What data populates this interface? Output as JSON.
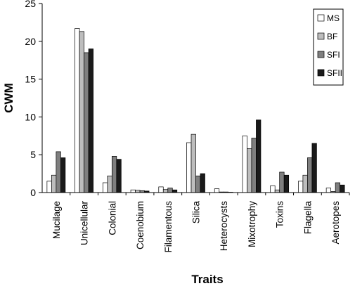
{
  "chart_data": {
    "type": "bar",
    "xlabel": "Traits",
    "ylabel": "CWM",
    "ylim": [
      0,
      25
    ],
    "yticks": [
      0,
      5,
      10,
      15,
      20,
      25
    ],
    "grid": false,
    "legend_position": "top-right",
    "categories": [
      "Mucilage",
      "Unicellular",
      "Colonial",
      "Coenobium",
      "Filamentous",
      "Silica",
      "Heterocysts",
      "Mixotrophy",
      "Toxins",
      "Flagella",
      "Aerotopes"
    ],
    "series": [
      {
        "name": "MS",
        "color": "#ffffff",
        "values": [
          1.5,
          21.7,
          1.3,
          0.35,
          0.75,
          6.6,
          0.5,
          7.5,
          0.9,
          1.5,
          0.6
        ]
      },
      {
        "name": "BF",
        "color": "#bdbdbd",
        "values": [
          2.3,
          21.3,
          2.2,
          0.3,
          0.4,
          7.7,
          0.08,
          5.8,
          0.35,
          2.3,
          0.15
        ]
      },
      {
        "name": "SFI",
        "color": "#7f7f7f",
        "values": [
          5.4,
          18.5,
          4.8,
          0.25,
          0.6,
          2.2,
          0.08,
          7.2,
          2.7,
          4.6,
          1.3
        ]
      },
      {
        "name": "SFII",
        "color": "#1a1a1a",
        "values": [
          4.6,
          19.0,
          4.4,
          0.2,
          0.35,
          2.5,
          0.05,
          9.6,
          2.3,
          6.5,
          1.0
        ]
      }
    ]
  }
}
